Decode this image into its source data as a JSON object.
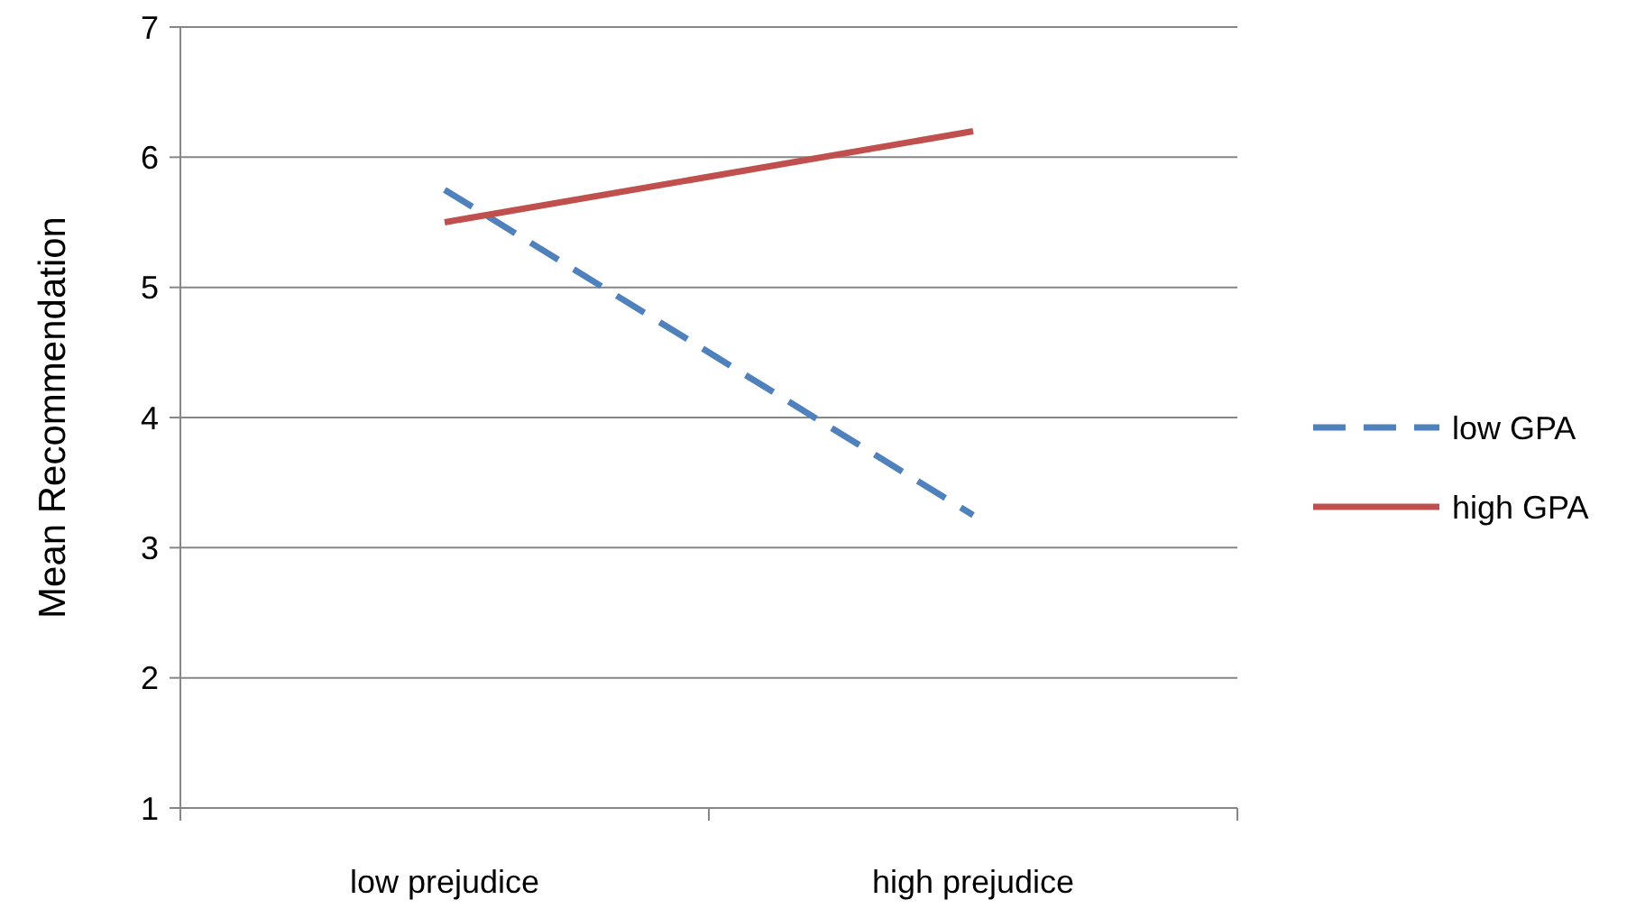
{
  "chart_data": {
    "type": "line",
    "ylabel": "Mean Recommendation",
    "categories": [
      "low prejudice",
      "high prejudice"
    ],
    "series": [
      {
        "name": "low GPA",
        "color": "#4f81bd",
        "values": [
          5.75,
          3.25
        ],
        "line_style": "dashed"
      },
      {
        "name": "high GPA",
        "color": "#c0504d",
        "values": [
          5.5,
          6.2
        ],
        "line_style": "solid"
      }
    ],
    "ylim": [
      1,
      7
    ],
    "yticks": [
      1,
      2,
      3,
      4,
      5,
      6,
      7
    ],
    "grid": "y",
    "legend": "right",
    "marker": "none"
  }
}
